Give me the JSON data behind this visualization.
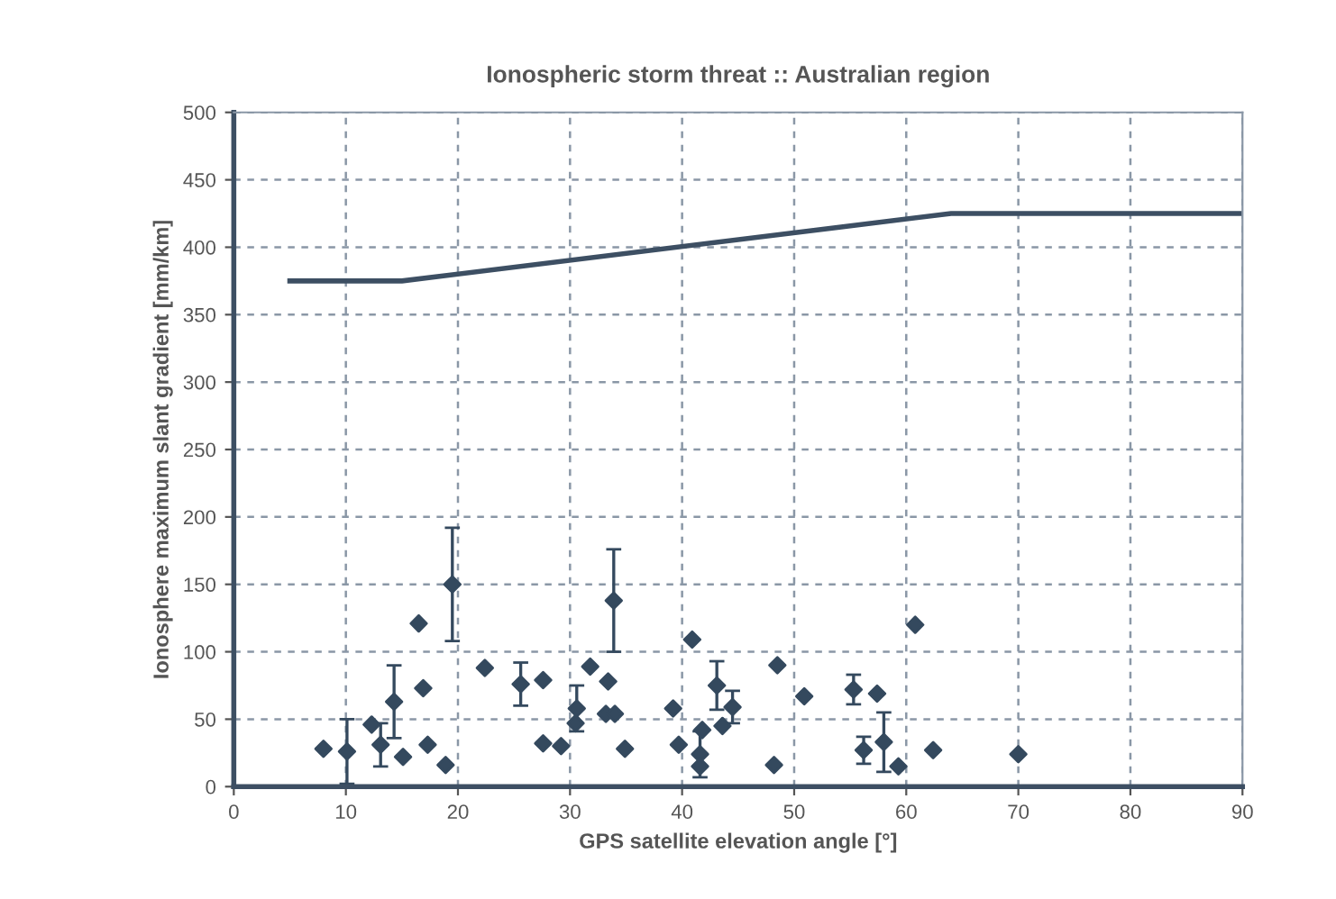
{
  "chart_data": {
    "type": "scatter",
    "title": "Ionospheric storm threat :: Australian region",
    "xlabel": "GPS satellite elevation angle [°]",
    "ylabel": "Ionosphere maximum slant gradient [mm/km]",
    "xlim": [
      0,
      90
    ],
    "xticks": [
      0,
      10,
      20,
      30,
      40,
      50,
      60,
      70,
      80,
      90
    ],
    "ylim": [
      0,
      500
    ],
    "yticks": [
      0,
      50,
      100,
      150,
      200,
      250,
      300,
      350,
      400,
      450,
      500
    ],
    "grid": true,
    "marker": "diamond",
    "legend": false,
    "series": [
      {
        "color": "#34495e",
        "x": [
          8,
          10.1,
          12.3,
          13.1,
          14.3,
          15.1,
          16.5,
          16.9,
          17.3,
          18.9,
          19.5,
          22.4,
          25.6,
          27.6,
          27.6,
          29.2,
          30.6,
          30.5,
          31.8,
          33.4,
          33.2,
          34.0,
          33.9,
          34.9,
          39.2,
          39.7,
          40.9,
          41.8,
          41.6,
          41.6,
          43.1,
          44.5,
          43.6,
          48.5,
          48.2,
          50.9,
          55.3,
          57.4,
          56.2,
          58.0,
          59.3,
          60.8,
          62.4,
          70.0
        ],
        "values": [
          28,
          26,
          46,
          31,
          63,
          22,
          121,
          73,
          31,
          16,
          150,
          88,
          76,
          79,
          32,
          30,
          58,
          47,
          89,
          78,
          54,
          54,
          138,
          28,
          58,
          31,
          109,
          42,
          24,
          15,
          75,
          59,
          45,
          90,
          16,
          67,
          72,
          69,
          27,
          33,
          15,
          120,
          27,
          24
        ],
        "errors": [
          null,
          24,
          null,
          16,
          27,
          null,
          null,
          null,
          null,
          null,
          42,
          null,
          16,
          null,
          null,
          null,
          17,
          null,
          null,
          null,
          null,
          null,
          38,
          null,
          null,
          null,
          null,
          null,
          17,
          null,
          18,
          12,
          null,
          null,
          null,
          null,
          11,
          null,
          10,
          22,
          null,
          null,
          null,
          null
        ]
      },
      {
        "type": "line",
        "color": "#3d4f63",
        "x": [
          5,
          15,
          64,
          90
        ],
        "values": [
          375,
          375,
          425,
          425
        ],
        "marker": "none"
      }
    ]
  }
}
